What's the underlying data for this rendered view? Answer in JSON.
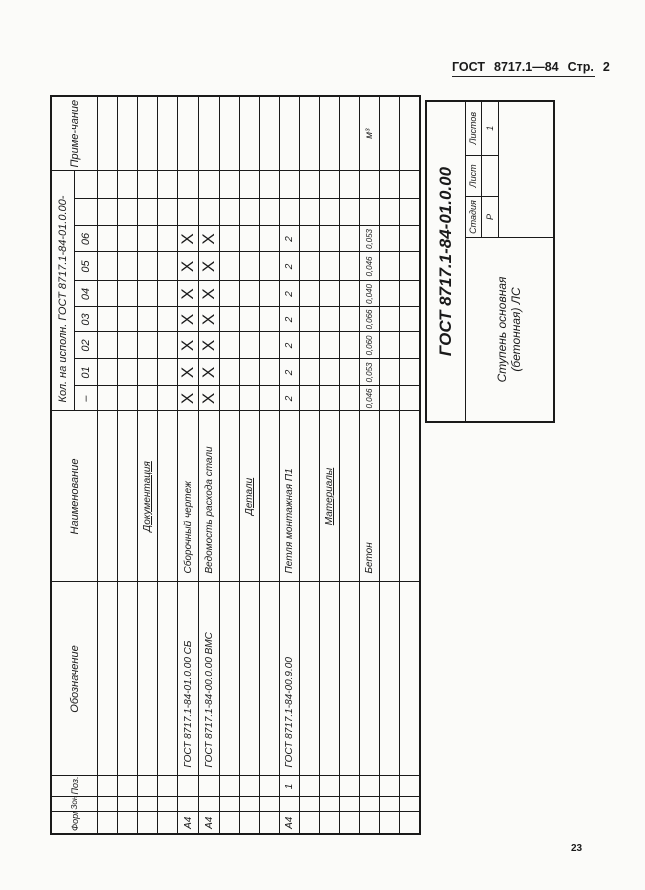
{
  "page_header": {
    "standard": "ГОСТ",
    "number": "8717.1—84",
    "page_label": "Стр.",
    "page": "2"
  },
  "page_number": "23",
  "table": {
    "headers": {
      "format": "Форм.",
      "zone": "Зона",
      "pos": "Поз.",
      "designation": "Обозначение",
      "name": "Наименование",
      "qty": "Кол. на исполн. ГОСТ 8717.1-84-01.0.00-",
      "qty_variants": [
        "–",
        "01",
        "02",
        "03",
        "04",
        "05",
        "06",
        "",
        ""
      ],
      "note": "Приме-чание"
    },
    "rows": [
      {
        "format": "",
        "zone": "",
        "pos": "",
        "designation": "",
        "name": "",
        "heading": false,
        "qty": [
          "",
          "",
          "",
          "",
          "",
          "",
          "",
          "",
          ""
        ],
        "note": ""
      },
      {
        "format": "",
        "zone": "",
        "pos": "",
        "designation": "",
        "name": "",
        "heading": false,
        "qty": [
          "",
          "",
          "",
          "",
          "",
          "",
          "",
          "",
          ""
        ],
        "note": ""
      },
      {
        "format": "",
        "zone": "",
        "pos": "",
        "designation": "",
        "name": "Документация",
        "heading": true,
        "qty": [
          "",
          "",
          "",
          "",
          "",
          "",
          "",
          "",
          ""
        ],
        "note": ""
      },
      {
        "format": "",
        "zone": "",
        "pos": "",
        "designation": "",
        "name": "",
        "heading": false,
        "qty": [
          "",
          "",
          "",
          "",
          "",
          "",
          "",
          "",
          ""
        ],
        "note": ""
      },
      {
        "format": "А4",
        "zone": "",
        "pos": "",
        "designation": "ГОСТ 8717.1-84-01.0.00 СБ",
        "name": "Сборочный чертеж",
        "heading": false,
        "qty": [
          "X",
          "X",
          "X",
          "X",
          "X",
          "X",
          "X",
          "",
          ""
        ],
        "note": ""
      },
      {
        "format": "А4",
        "zone": "",
        "pos": "",
        "designation": "ГОСТ 8717.1-84-00.0.00 ВМС",
        "name": "Ведомость расхода стали",
        "heading": false,
        "qty": [
          "X",
          "X",
          "X",
          "X",
          "X",
          "X",
          "X",
          "",
          ""
        ],
        "note": ""
      },
      {
        "format": "",
        "zone": "",
        "pos": "",
        "designation": "",
        "name": "",
        "heading": false,
        "qty": [
          "",
          "",
          "",
          "",
          "",
          "",
          "",
          "",
          ""
        ],
        "note": ""
      },
      {
        "format": "",
        "zone": "",
        "pos": "",
        "designation": "",
        "name": "Детали",
        "heading": true,
        "qty": [
          "",
          "",
          "",
          "",
          "",
          "",
          "",
          "",
          ""
        ],
        "note": ""
      },
      {
        "format": "",
        "zone": "",
        "pos": "",
        "designation": "",
        "name": "",
        "heading": false,
        "qty": [
          "",
          "",
          "",
          "",
          "",
          "",
          "",
          "",
          ""
        ],
        "note": ""
      },
      {
        "format": "А4",
        "zone": "",
        "pos": "1",
        "designation": "ГОСТ 8717.1-84-00.9.00",
        "name": "Петля монтажная П1",
        "heading": false,
        "qty": [
          "2",
          "2",
          "2",
          "2",
          "2",
          "2",
          "2",
          "",
          ""
        ],
        "note": ""
      },
      {
        "format": "",
        "zone": "",
        "pos": "",
        "designation": "",
        "name": "",
        "heading": false,
        "qty": [
          "",
          "",
          "",
          "",
          "",
          "",
          "",
          "",
          ""
        ],
        "note": ""
      },
      {
        "format": "",
        "zone": "",
        "pos": "",
        "designation": "",
        "name": "Материалы",
        "heading": true,
        "qty": [
          "",
          "",
          "",
          "",
          "",
          "",
          "",
          "",
          ""
        ],
        "note": ""
      },
      {
        "format": "",
        "zone": "",
        "pos": "",
        "designation": "",
        "name": "",
        "heading": false,
        "qty": [
          "",
          "",
          "",
          "",
          "",
          "",
          "",
          "",
          ""
        ],
        "note": ""
      },
      {
        "format": "",
        "zone": "",
        "pos": "",
        "designation": "",
        "name": "Бетон",
        "heading": false,
        "qty": [
          "0,046",
          "0,053",
          "0,060",
          "0,066",
          "0,040",
          "0,046",
          "0,053",
          "",
          ""
        ],
        "note": "м³"
      },
      {
        "format": "",
        "zone": "",
        "pos": "",
        "designation": "",
        "name": "",
        "heading": false,
        "qty": [
          "",
          "",
          "",
          "",
          "",
          "",
          "",
          "",
          ""
        ],
        "note": ""
      },
      {
        "format": "",
        "zone": "",
        "pos": "",
        "designation": "",
        "name": "",
        "heading": false,
        "qty": [
          "",
          "",
          "",
          "",
          "",
          "",
          "",
          "",
          ""
        ],
        "note": ""
      }
    ]
  },
  "title_block": {
    "designation": "ГОСТ 8717.1-84-01.0.00",
    "name_line1": "Ступень основная",
    "name_line2": "(бетонная) ЛС",
    "stage_label": "Стадия",
    "sheet_label": "Лист",
    "sheets_label": "Листов",
    "stage": "Р",
    "sheet": "",
    "sheets": "1"
  }
}
